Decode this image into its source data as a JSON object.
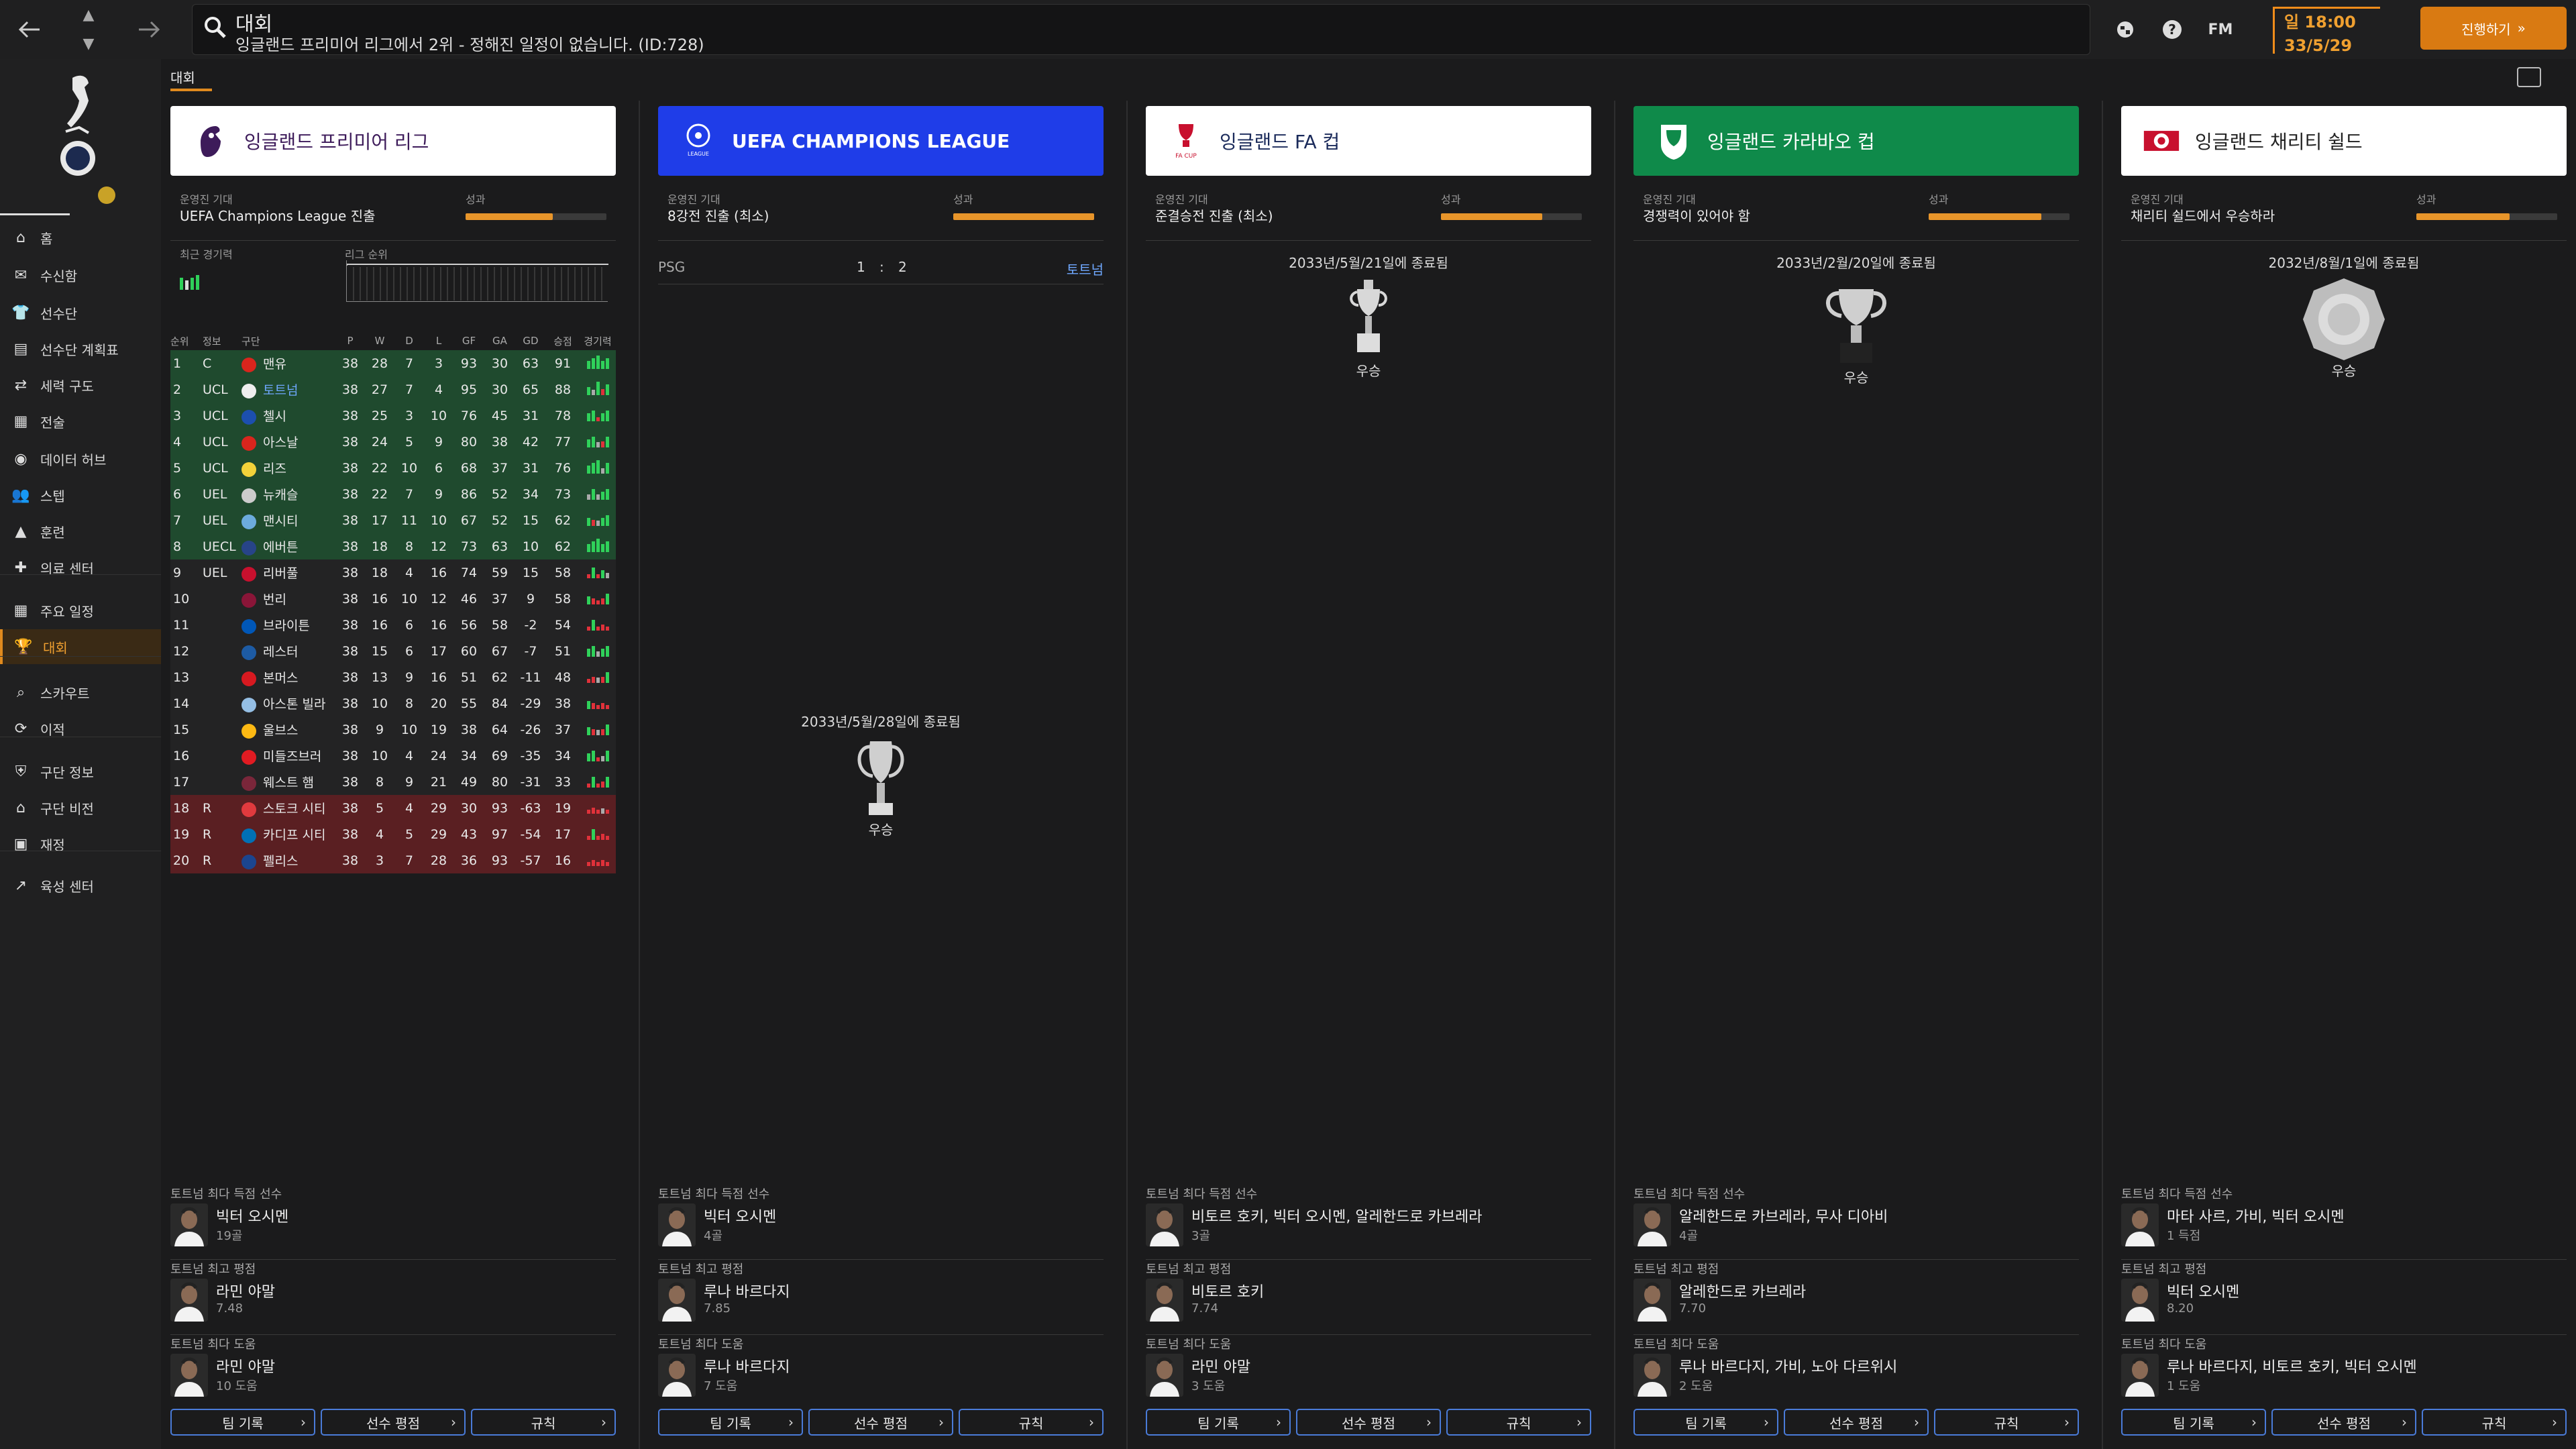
{
  "topbar": {
    "page_title": "대회",
    "subtitle": "잉글랜드 프리미어 리그에서 2위 - 정해진 일정이 없습니다. (ID:728)",
    "fm_label": "FM",
    "day_time": "일 18:00",
    "date": "33/5/29",
    "continue_label": "진행하기",
    "icons": [
      "back-arrow-icon",
      "forward-arrow-icon",
      "up-icon",
      "down-icon",
      "search-icon",
      "globe-icon",
      "help-icon"
    ]
  },
  "sidebar": {
    "items": [
      {
        "label": "홈",
        "icon": "home-icon"
      },
      {
        "label": "수신함",
        "icon": "inbox-icon"
      },
      {
        "label": "선수단",
        "icon": "squad-icon"
      },
      {
        "label": "선수단 계획표",
        "icon": "planner-icon"
      },
      {
        "label": "세력 구도",
        "icon": "dynamics-icon"
      },
      {
        "label": "전술",
        "icon": "tactics-icon"
      },
      {
        "label": "데이터 허브",
        "icon": "data-hub-icon"
      },
      {
        "label": "스텝",
        "icon": "staff-icon"
      },
      {
        "label": "훈련",
        "icon": "training-icon"
      },
      {
        "label": "의료 센터",
        "icon": "medical-icon"
      },
      {
        "label": "주요 일정",
        "icon": "calendar-icon"
      },
      {
        "label": "대회",
        "icon": "trophy-icon",
        "active": true
      },
      {
        "label": "스카우트",
        "icon": "scout-icon"
      },
      {
        "label": "이적",
        "icon": "transfer-icon"
      },
      {
        "label": "구단 정보",
        "icon": "club-info-icon"
      },
      {
        "label": "구단 비전",
        "icon": "club-vision-icon"
      },
      {
        "label": "재정",
        "icon": "finance-icon"
      },
      {
        "label": "육성 센터",
        "icon": "development-icon"
      }
    ]
  },
  "subtab": "대회",
  "labels": {
    "board_expect": "운영진 기대",
    "performance": "성과",
    "recent_form": "최근 경기력",
    "league_pos": "리그 순위",
    "top_scorer": "토트넘 최다 득점 선수",
    "top_rating": "토트넘 최고 평점",
    "top_assist": "토트넘 최다 도움",
    "btn_team_record": "팀 기록",
    "btn_player_rating": "선수 평점",
    "btn_rules": "규칙",
    "winner": "우승"
  },
  "table_headers": [
    "순위",
    "정보",
    "구단",
    "P",
    "W",
    "D",
    "L",
    "GF",
    "GA",
    "GD",
    "승점",
    "경기력"
  ],
  "league_table": [
    {
      "pos": "1",
      "info": "C",
      "team": "맨유",
      "p": "38",
      "w": "28",
      "d": "7",
      "l": "3",
      "gf": "93",
      "ga": "30",
      "gd": "63",
      "pts": "91",
      "zone": "g",
      "color": "#d9251d",
      "form": "WWWWW"
    },
    {
      "pos": "2",
      "info": "UCL",
      "team": "토트넘",
      "p": "38",
      "w": "27",
      "d": "7",
      "l": "4",
      "gf": "95",
      "ga": "30",
      "gd": "65",
      "pts": "88",
      "zone": "g",
      "color": "#eeeeee",
      "form": "WDWLW",
      "hl": true
    },
    {
      "pos": "3",
      "info": "UCL",
      "team": "첼시",
      "p": "38",
      "w": "25",
      "d": "3",
      "l": "10",
      "gf": "76",
      "ga": "45",
      "gd": "31",
      "pts": "78",
      "zone": "g",
      "color": "#1c4fae",
      "form": "WWLWW"
    },
    {
      "pos": "4",
      "info": "UCL",
      "team": "아스날",
      "p": "38",
      "w": "24",
      "d": "5",
      "l": "9",
      "gf": "80",
      "ga": "38",
      "gd": "42",
      "pts": "77",
      "zone": "g",
      "color": "#d9251d",
      "form": "WWDLW"
    },
    {
      "pos": "5",
      "info": "UCL",
      "team": "리즈",
      "p": "38",
      "w": "22",
      "d": "10",
      "l": "6",
      "gf": "68",
      "ga": "37",
      "gd": "31",
      "pts": "76",
      "zone": "g",
      "color": "#f2d23a",
      "form": "WWWDW"
    },
    {
      "pos": "6",
      "info": "UEL",
      "team": "뉴캐슬",
      "p": "38",
      "w": "22",
      "d": "7",
      "l": "9",
      "gf": "86",
      "ga": "52",
      "gd": "34",
      "pts": "73",
      "zone": "g",
      "color": "#cccccc",
      "form": "DWDWW"
    },
    {
      "pos": "7",
      "info": "UEL",
      "team": "맨시티",
      "p": "38",
      "w": "17",
      "d": "11",
      "l": "10",
      "gf": "67",
      "ga": "52",
      "gd": "15",
      "pts": "62",
      "zone": "g",
      "color": "#6cabdd",
      "form": "WLDWW"
    },
    {
      "pos": "8",
      "info": "UECL",
      "team": "에버튼",
      "p": "38",
      "w": "18",
      "d": "8",
      "l": "12",
      "gf": "73",
      "ga": "63",
      "gd": "10",
      "pts": "62",
      "zone": "g",
      "color": "#274488",
      "form": "WWWWW"
    },
    {
      "pos": "9",
      "info": "UEL",
      "team": "리버풀",
      "p": "38",
      "w": "18",
      "d": "4",
      "l": "16",
      "gf": "74",
      "ga": "59",
      "gd": "15",
      "pts": "58",
      "zone": "n",
      "color": "#c8102e",
      "form": "LWLWD"
    },
    {
      "pos": "10",
      "info": "",
      "team": "번리",
      "p": "38",
      "w": "16",
      "d": "10",
      "l": "12",
      "gf": "46",
      "ga": "37",
      "gd": "9",
      "pts": "58",
      "zone": "n",
      "color": "#8a1538",
      "form": "WLLLW"
    },
    {
      "pos": "11",
      "info": "",
      "team": "브라이튼",
      "p": "38",
      "w": "16",
      "d": "6",
      "l": "16",
      "gf": "56",
      "ga": "58",
      "gd": "-2",
      "pts": "54",
      "zone": "n",
      "color": "#0057b8",
      "form": "LWLLL"
    },
    {
      "pos": "12",
      "info": "",
      "team": "레스터",
      "p": "38",
      "w": "15",
      "d": "6",
      "l": "17",
      "gf": "60",
      "ga": "67",
      "gd": "-7",
      "pts": "51",
      "zone": "n",
      "color": "#1d5ba4",
      "form": "WWDWW"
    },
    {
      "pos": "13",
      "info": "",
      "team": "본머스",
      "p": "38",
      "w": "13",
      "d": "9",
      "l": "16",
      "gf": "51",
      "ga": "62",
      "gd": "-11",
      "pts": "48",
      "zone": "n",
      "color": "#d71920",
      "form": "LLDLW"
    },
    {
      "pos": "14",
      "info": "",
      "team": "아스톤 빌라",
      "p": "38",
      "w": "10",
      "d": "8",
      "l": "20",
      "gf": "55",
      "ga": "84",
      "gd": "-29",
      "pts": "38",
      "zone": "n",
      "color": "#95bfe5",
      "form": "WLLLL"
    },
    {
      "pos": "15",
      "info": "",
      "team": "울브스",
      "p": "38",
      "w": "9",
      "d": "10",
      "l": "19",
      "gf": "38",
      "ga": "64",
      "gd": "-26",
      "pts": "37",
      "zone": "n",
      "color": "#fdb913",
      "form": "WLDLW"
    },
    {
      "pos": "16",
      "info": "",
      "team": "미들즈브러",
      "p": "38",
      "w": "10",
      "d": "4",
      "l": "24",
      "gf": "34",
      "ga": "69",
      "gd": "-35",
      "pts": "34",
      "zone": "n",
      "color": "#e11b22",
      "form": "WWLDW"
    },
    {
      "pos": "17",
      "info": "",
      "team": "웨스트 햄",
      "p": "38",
      "w": "8",
      "d": "9",
      "l": "21",
      "gf": "49",
      "ga": "80",
      "gd": "-31",
      "pts": "33",
      "zone": "n",
      "color": "#7a263a",
      "form": "LWLLW"
    },
    {
      "pos": "18",
      "info": "R",
      "team": "스토크 시티",
      "p": "38",
      "w": "5",
      "d": "4",
      "l": "29",
      "gf": "30",
      "ga": "93",
      "gd": "-63",
      "pts": "19",
      "zone": "r",
      "color": "#e03a3e",
      "form": "LLLDL"
    },
    {
      "pos": "19",
      "info": "R",
      "team": "카디프 시티",
      "p": "38",
      "w": "4",
      "d": "5",
      "l": "29",
      "gf": "43",
      "ga": "97",
      "gd": "-54",
      "pts": "17",
      "zone": "r",
      "color": "#0070b5",
      "form": "LWLLL"
    },
    {
      "pos": "20",
      "info": "R",
      "team": "펠리스",
      "p": "38",
      "w": "3",
      "d": "7",
      "l": "28",
      "gf": "36",
      "ga": "93",
      "gd": "-57",
      "pts": "16",
      "zone": "r",
      "color": "#1b458f",
      "form": "LLLLL"
    }
  ],
  "competitions": [
    {
      "name": "잉글랜드 프리미어 리그",
      "header_bg": "#ffffff",
      "header_color": "#3d1b5a",
      "logo": "premier-league-logo",
      "expect": "UEFA Champions League 진출",
      "perf": 0.62,
      "scorer": {
        "name": "빅터 오시멘",
        "sub": "19골"
      },
      "rating": {
        "name": "라민 야말",
        "sub": "7.48"
      },
      "assist": {
        "name": "라민 야말",
        "sub": "10 도움"
      }
    },
    {
      "name": "UEFA CHAMPIONS LEAGUE",
      "header_bg": "#1f3de8",
      "header_color": "#ffffff",
      "logo": "champions-league-logo",
      "expect": "8강전 진출 (최소)",
      "perf": 1.0,
      "match": {
        "home": "PSG",
        "score_home": "1",
        "sep": ":",
        "score_away": "2",
        "away": "토트넘"
      },
      "trophy_date": "2033년/5월/28일에 종료됨",
      "scorer": {
        "name": "빅터 오시멘",
        "sub": "4골"
      },
      "rating": {
        "name": "루나 바르다지",
        "sub": "7.85"
      },
      "assist": {
        "name": "루나 바르다지",
        "sub": "7 도움"
      }
    },
    {
      "name": "잉글랜드 FA 컵",
      "header_bg": "#ffffff",
      "header_color": "#1a2a5a",
      "logo": "fa-cup-logo",
      "expect": "준결승전 진출 (최소)",
      "perf": 0.72,
      "trophy_date": "2033년/5월/21일에 종료됨",
      "scorer": {
        "name": "비토르 호키, 빅터 오시멘, 알레한드로 카브레라",
        "sub": "3골"
      },
      "rating": {
        "name": "비토르 호키",
        "sub": "7.74"
      },
      "assist": {
        "name": "라민 야말",
        "sub": "3 도움"
      }
    },
    {
      "name": "잉글랜드 카라바오 컵",
      "header_bg": "#0f8a4a",
      "header_color": "#ffffff",
      "logo": "carabao-cup-logo",
      "expect": "경쟁력이 있어야 함",
      "perf": 0.8,
      "trophy_date": "2033년/2월/20일에 종료됨",
      "scorer": {
        "name": "알레한드로 카브레라, 무사 디아비",
        "sub": "4골"
      },
      "rating": {
        "name": "알레한드로 카브레라",
        "sub": "7.70"
      },
      "assist": {
        "name": "루나 바르다지, 가비, 노아 다르위시",
        "sub": "2 도움"
      }
    },
    {
      "name": "잉글랜드 채리티 쉴드",
      "header_bg": "#ffffff",
      "header_color": "#222222",
      "logo": "community-shield-logo",
      "expect": "채리티 쉴드에서 우승하라",
      "perf": 0.66,
      "trophy_date": "2032년/8월/1일에 종료됨",
      "scorer": {
        "name": "마타 사르, 가비, 빅터 오시멘",
        "sub": "1 득점"
      },
      "rating": {
        "name": "빅터 오시멘",
        "sub": "8.20"
      },
      "assist": {
        "name": "루나 바르다지, 비토르 호키, 빅터 오시멘",
        "sub": "1 도움"
      }
    }
  ],
  "colors": {
    "accent": "#e08a1e",
    "win": "#2fd15a",
    "loss": "#e0313a",
    "draw": "#aaaaaa",
    "button_border": "#4a7bd8"
  }
}
